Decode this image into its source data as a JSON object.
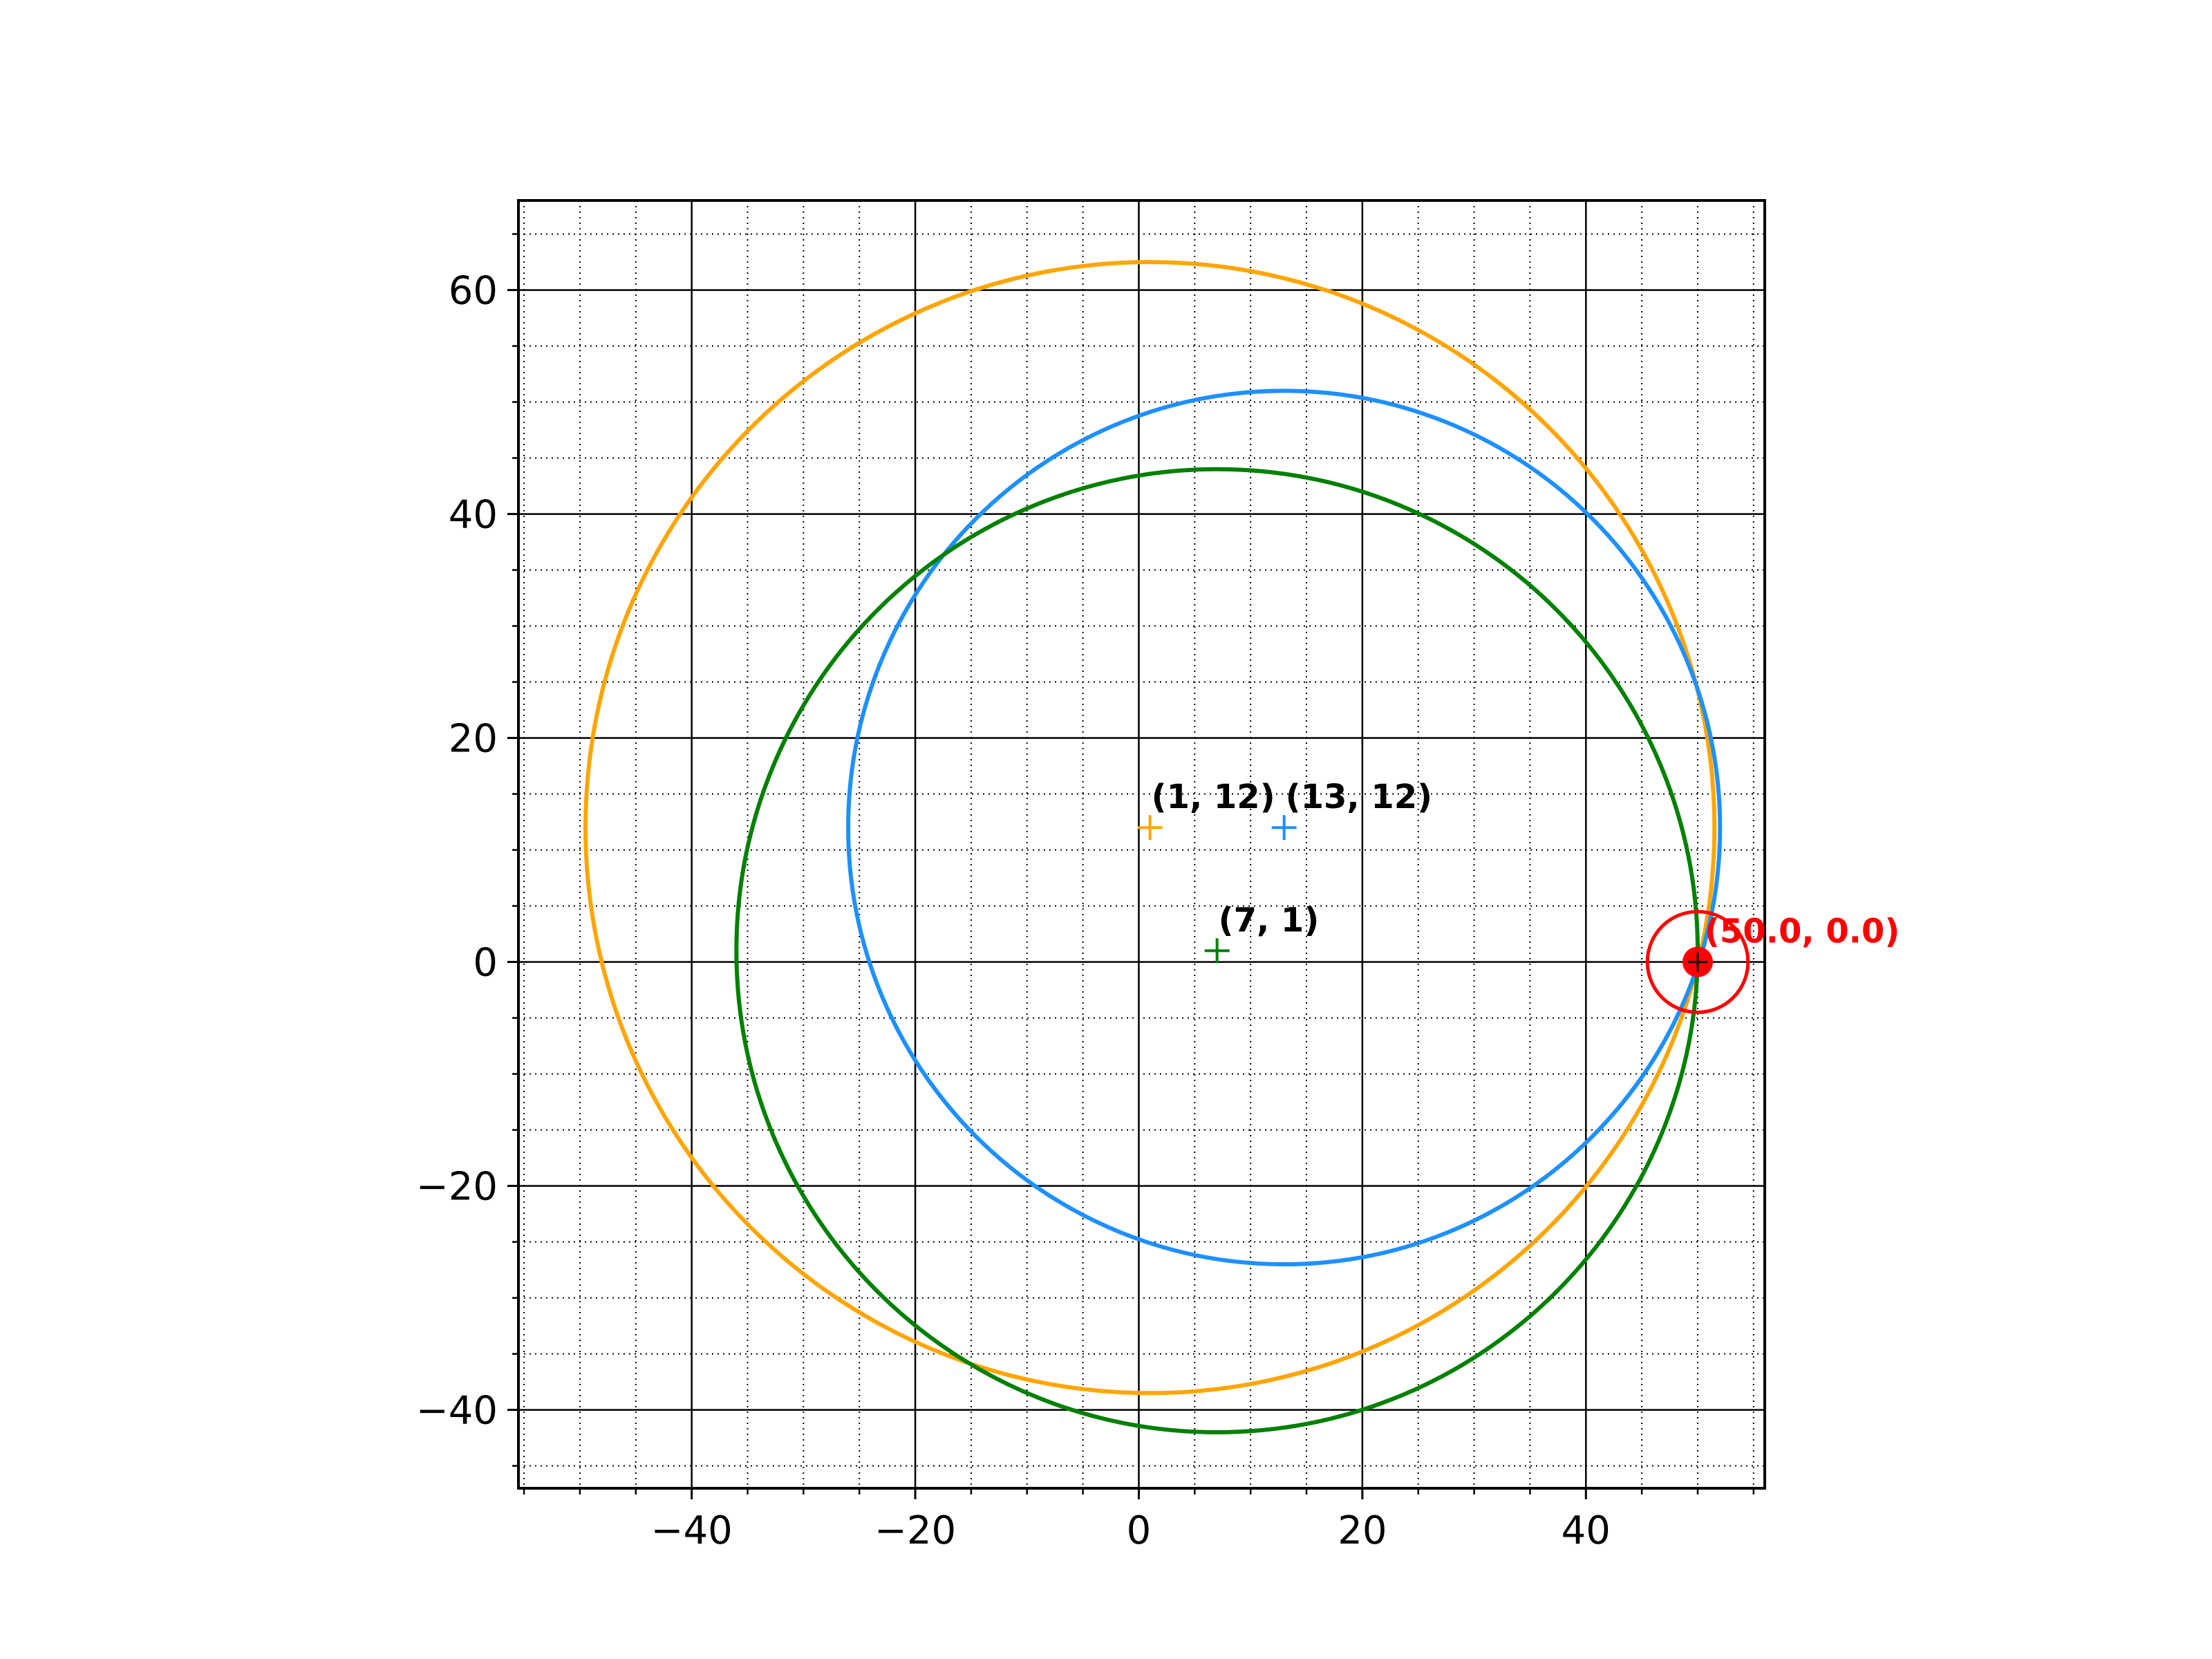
{
  "chart_data": {
    "type": "scatter",
    "title": "",
    "xlabel": "",
    "ylabel": "",
    "xlim": [
      -55.5,
      56
    ],
    "ylim": [
      -47,
      68
    ],
    "aspect": "equal",
    "grid": {
      "major": true,
      "minor": true,
      "major_style": "solid",
      "minor_style": "dotted"
    },
    "x_ticks": [
      -40,
      -20,
      0,
      20,
      40
    ],
    "y_ticks": [
      -40,
      -20,
      0,
      20,
      40,
      60
    ],
    "x_tick_labels": [
      "−40",
      "−20",
      "0",
      "20",
      "40"
    ],
    "y_tick_labels": [
      "−40",
      "−20",
      "0",
      "20",
      "40",
      "60"
    ],
    "x_minor_step": 5,
    "y_minor_step": 5,
    "circles": [
      {
        "center": [
          1,
          12
        ],
        "radius": 50.5,
        "color": "#FFA500",
        "center_label": "(1, 12)"
      },
      {
        "center": [
          13,
          12
        ],
        "radius": 39,
        "color": "#1E90FF",
        "center_label": "(13, 12)"
      },
      {
        "center": [
          7,
          1
        ],
        "radius": 43,
        "color": "#008000",
        "center_label": "(7, 1)"
      }
    ],
    "highlight_point": {
      "x": 50.0,
      "y": 0.0,
      "color": "#FF0000",
      "label": "(50.0, 0.0)",
      "ring_radius": 4.5
    }
  }
}
